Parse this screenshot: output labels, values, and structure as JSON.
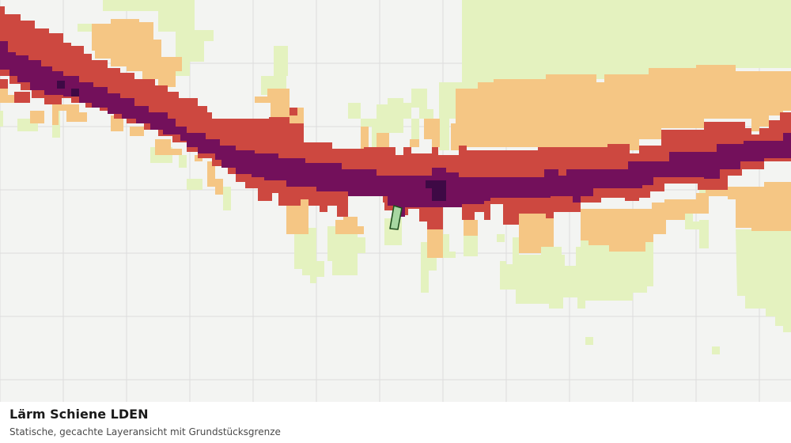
{
  "map": {
    "layer": "Lärm Schiene LDEN",
    "colors": {
      "background": "#f3f4f2",
      "grid": "#dcdcdc",
      "level_1": "#e4f2bf",
      "level_2": "#f5c684",
      "level_3": "#cd4840",
      "level_4": "#73105b",
      "level_5": "#3e0945",
      "parcel_fill": "#a7d7a2",
      "parcel_outline": "#1f4f1f"
    }
  },
  "caption": {
    "title": "Lärm Schiene LDEN",
    "subtitle": "Statische, gecachte Layeransicht mit Grundstücksgrenze"
  }
}
